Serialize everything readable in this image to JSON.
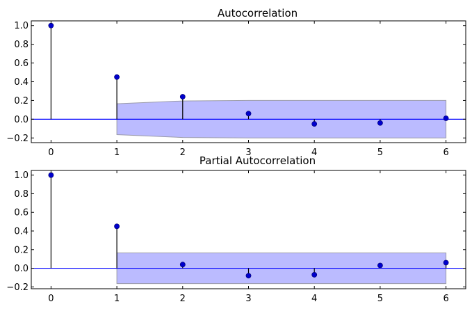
{
  "chart_data": [
    {
      "type": "stem",
      "title": "Autocorrelation",
      "xlabel": "",
      "ylabel": "",
      "xlim": [
        -0.3,
        6.3
      ],
      "ylim": [
        -0.25,
        1.05
      ],
      "xticks": [
        "0",
        "1",
        "2",
        "3",
        "4",
        "5",
        "6"
      ],
      "yticks": [
        "−0.2",
        "0.0",
        "0.2",
        "0.4",
        "0.6",
        "0.8",
        "1.0"
      ],
      "lags": [
        0,
        1,
        2,
        3,
        4,
        5,
        6
      ],
      "values": [
        1.0,
        0.45,
        0.24,
        0.06,
        -0.05,
        -0.04,
        0.01
      ],
      "confidence_band": {
        "x": [
          1,
          2,
          3,
          4,
          5,
          6
        ],
        "upper": [
          0.165,
          0.195,
          0.2,
          0.2,
          0.2,
          0.2
        ],
        "lower": [
          -0.165,
          -0.195,
          -0.2,
          -0.2,
          -0.2,
          -0.2
        ]
      },
      "grid": false,
      "colors": {
        "marker": "#0000cc",
        "stem": "#000000",
        "zero_line": "#0000ff",
        "band": "#bbbbff"
      }
    },
    {
      "type": "stem",
      "title": "Partial Autocorrelation",
      "xlabel": "",
      "ylabel": "",
      "xlim": [
        -0.3,
        6.3
      ],
      "ylim": [
        -0.22,
        1.05
      ],
      "xticks": [
        "0",
        "1",
        "2",
        "3",
        "4",
        "5",
        "6"
      ],
      "yticks": [
        "−0.2",
        "0.0",
        "0.2",
        "0.4",
        "0.6",
        "0.8",
        "1.0"
      ],
      "lags": [
        0,
        1,
        2,
        3,
        4,
        5,
        6
      ],
      "values": [
        1.0,
        0.45,
        0.04,
        -0.08,
        -0.07,
        0.03,
        0.06
      ],
      "confidence_band": {
        "x": [
          1,
          6
        ],
        "upper": [
          0.165,
          0.165
        ],
        "lower": [
          -0.165,
          -0.165
        ]
      },
      "grid": false,
      "colors": {
        "marker": "#0000cc",
        "stem": "#000000",
        "zero_line": "#0000ff",
        "band": "#bbbbff"
      }
    }
  ]
}
